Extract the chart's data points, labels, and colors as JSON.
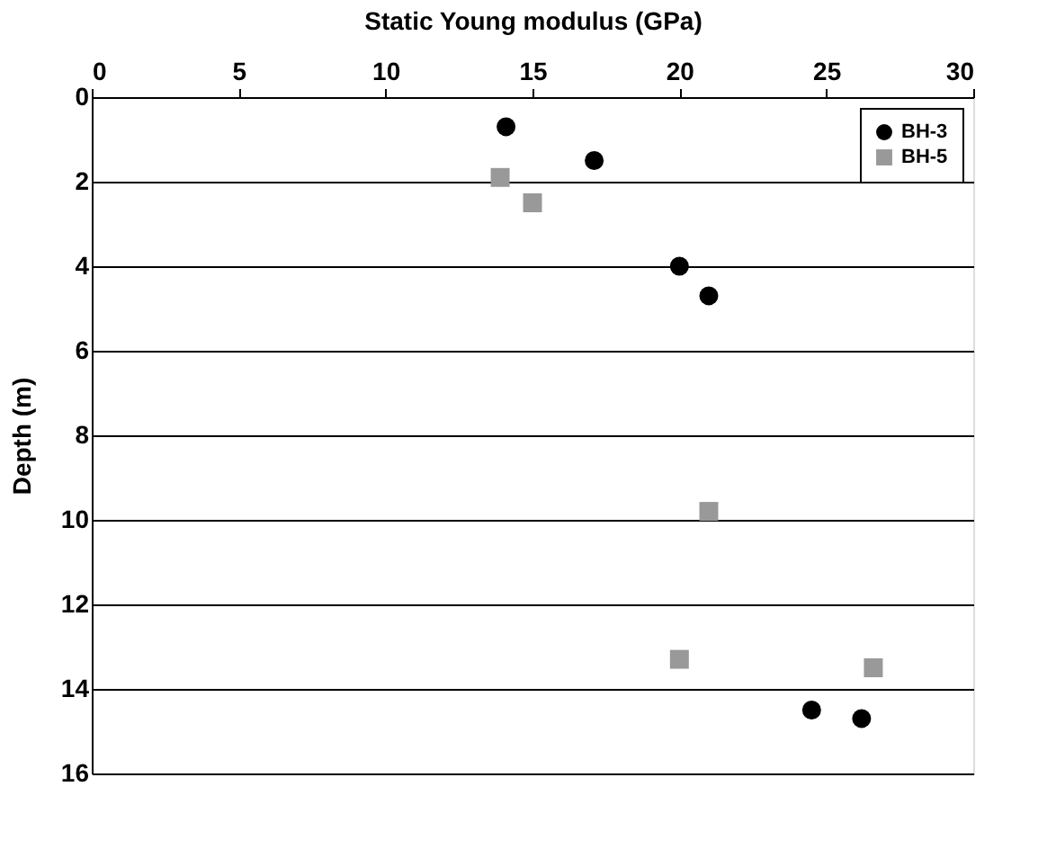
{
  "chart_data": {
    "type": "scatter",
    "xlabel": "Static Young modulus (GPa)",
    "ylabel": "Depth (m)",
    "xlim": [
      0,
      30
    ],
    "xticks": [
      0,
      5,
      10,
      15,
      20,
      25,
      30
    ],
    "ylim": [
      16,
      0
    ],
    "yticks": [
      0,
      2,
      4,
      6,
      8,
      10,
      12,
      14,
      16
    ],
    "grid": "y",
    "legend": "top right",
    "series": [
      {
        "name": "BH-3",
        "color": "#000000",
        "marker": "circle",
        "x": [
          14.1,
          17.1,
          20.0,
          21.0,
          24.5,
          26.2
        ],
        "values": [
          0.7,
          1.5,
          4.0,
          4.7,
          14.5,
          14.7
        ]
      },
      {
        "name": "BH-5",
        "color": "#999999",
        "marker": "square",
        "x": [
          13.9,
          15.0,
          21.0,
          20.0,
          26.6
        ],
        "values": [
          1.9,
          2.5,
          9.8,
          13.3,
          13.5
        ]
      }
    ]
  }
}
